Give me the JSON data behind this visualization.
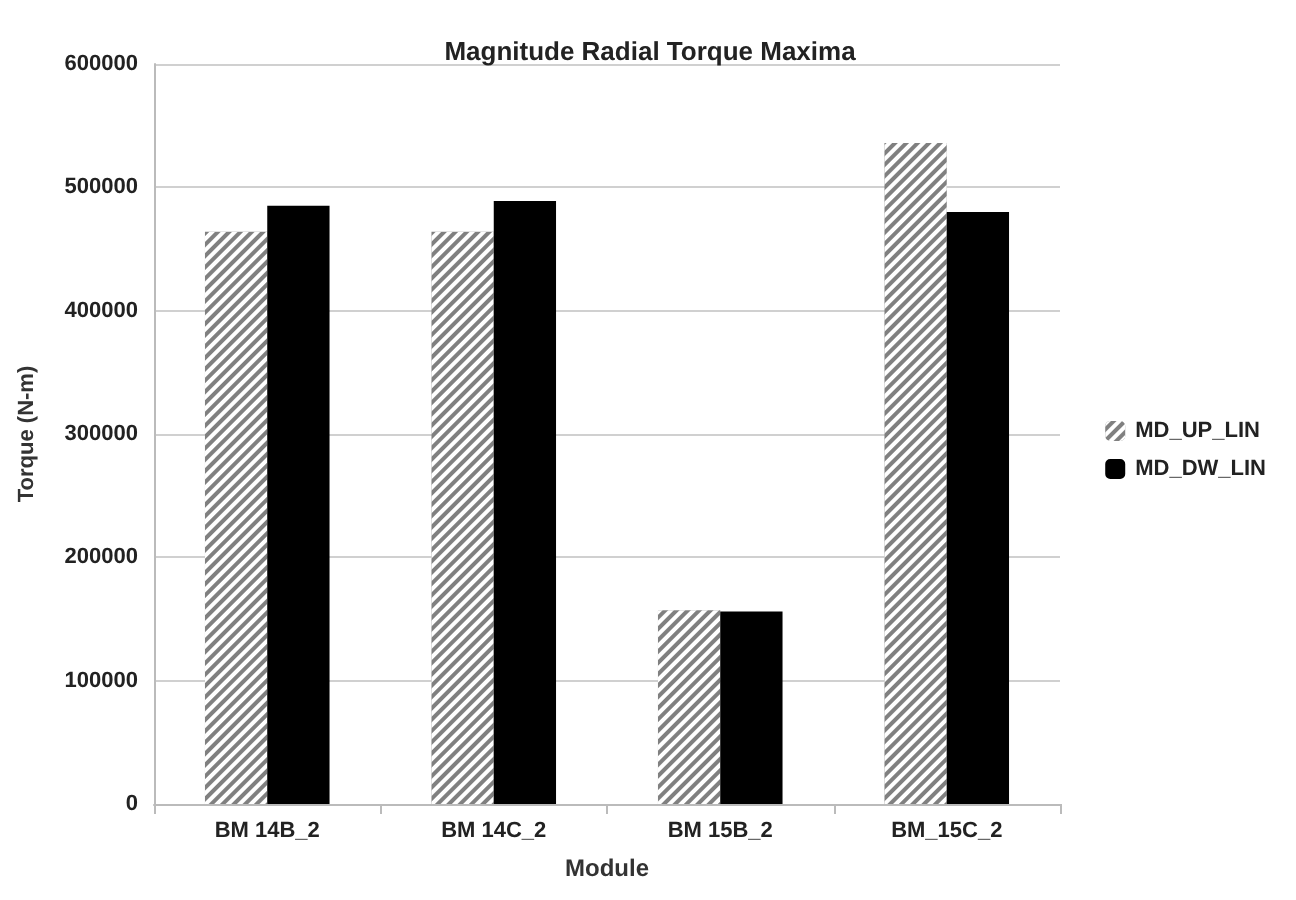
{
  "chart_data": {
    "type": "bar",
    "title": "Magnitude Radial Torque Maxima",
    "xlabel": "Module",
    "ylabel": "Torque (N-m)",
    "categories": [
      "BM 14B_2",
      "BM 14C_2",
      "BM 15B_2",
      "BM_15C_2"
    ],
    "series": [
      {
        "name": "MD_UP_LIN",
        "color": "#808080",
        "values": [
          464000,
          464000,
          157000,
          536000
        ]
      },
      {
        "name": "MD_DW_LIN",
        "color": "#000000",
        "values": [
          485000,
          489000,
          156000,
          480000
        ]
      }
    ],
    "ylim": [
      0,
      600000
    ],
    "yticks": [
      0,
      100000,
      200000,
      300000,
      400000,
      500000,
      600000
    ],
    "grid": "y",
    "legend": "right"
  }
}
